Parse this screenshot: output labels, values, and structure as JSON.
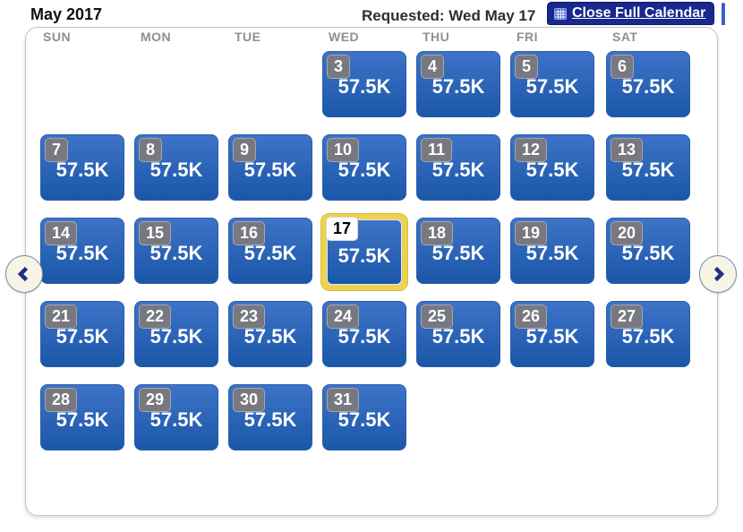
{
  "page": {
    "month_title": "May 2017",
    "requested_label": "Requested: Wed May 17",
    "close_button_label": "Close Full Calendar"
  },
  "calendar": {
    "weekdays": [
      "SUN",
      "MON",
      "TUE",
      "WED",
      "THU",
      "FRI",
      "SAT"
    ],
    "selected_day": 17,
    "days": [
      {
        "day": 3,
        "price": "57.5K"
      },
      {
        "day": 4,
        "price": "57.5K"
      },
      {
        "day": 5,
        "price": "57.5K"
      },
      {
        "day": 6,
        "price": "57.5K"
      },
      {
        "day": 7,
        "price": "57.5K"
      },
      {
        "day": 8,
        "price": "57.5K"
      },
      {
        "day": 9,
        "price": "57.5K"
      },
      {
        "day": 10,
        "price": "57.5K"
      },
      {
        "day": 11,
        "price": "57.5K"
      },
      {
        "day": 12,
        "price": "57.5K"
      },
      {
        "day": 13,
        "price": "57.5K"
      },
      {
        "day": 14,
        "price": "57.5K"
      },
      {
        "day": 15,
        "price": "57.5K"
      },
      {
        "day": 16,
        "price": "57.5K"
      },
      {
        "day": 17,
        "price": "57.5K",
        "selected": true
      },
      {
        "day": 18,
        "price": "57.5K"
      },
      {
        "day": 19,
        "price": "57.5K"
      },
      {
        "day": 20,
        "price": "57.5K"
      },
      {
        "day": 21,
        "price": "57.5K"
      },
      {
        "day": 22,
        "price": "57.5K"
      },
      {
        "day": 23,
        "price": "57.5K"
      },
      {
        "day": 24,
        "price": "57.5K"
      },
      {
        "day": 25,
        "price": "57.5K"
      },
      {
        "day": 26,
        "price": "57.5K"
      },
      {
        "day": 27,
        "price": "57.5K"
      },
      {
        "day": 28,
        "price": "57.5K"
      },
      {
        "day": 29,
        "price": "57.5K"
      },
      {
        "day": 30,
        "price": "57.5K"
      },
      {
        "day": 31,
        "price": "57.5K"
      }
    ]
  },
  "colors": {
    "tile_top": "#3E73C8",
    "tile_bottom": "#1B57A8",
    "selected_frame": "#EDD24F",
    "badge_gray": "#787880",
    "button_navy": "#19288D"
  }
}
